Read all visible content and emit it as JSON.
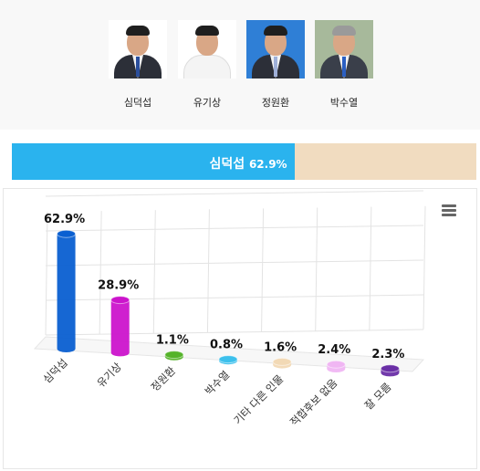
{
  "candidates": [
    {
      "name": "심덕섭",
      "photo_bg": "#ffffff",
      "suit": "#2c2f38"
    },
    {
      "name": "유기상",
      "photo_bg": "#ffffff",
      "suit": "#ffffff"
    },
    {
      "name": "정원환",
      "photo_bg": "#2f7fd6",
      "suit": "#2c2f38"
    },
    {
      "name": "박수열",
      "photo_bg": "#a7b99b",
      "suit": "#3a3f4a"
    }
  ],
  "result": {
    "leader": "심덕섭",
    "percent_text": "62.9%",
    "share": 0.629,
    "fill_color": "#2ab3ee",
    "rest_color": "#f1dcc0"
  },
  "chart_data": {
    "type": "bar",
    "categories": [
      "심덕섭",
      "유기상",
      "정원환",
      "박수열",
      "기타 다른 인물",
      "적합후보 없음",
      "잘 모름"
    ],
    "values": [
      62.9,
      28.9,
      1.1,
      0.8,
      1.6,
      2.4,
      2.3
    ],
    "data_labels": [
      "62.9%",
      "28.9%",
      "1.1%",
      "0.8%",
      "1.6%",
      "2.4%",
      "2.3%"
    ],
    "colors": [
      "#0a5fd1",
      "#cc14cc",
      "#55b32a",
      "#3cc0ec",
      "#f2d9b5",
      "#f0b6f3",
      "#6a2fa6"
    ],
    "ylim": [
      0,
      70
    ],
    "grid": true,
    "legend": "none"
  }
}
